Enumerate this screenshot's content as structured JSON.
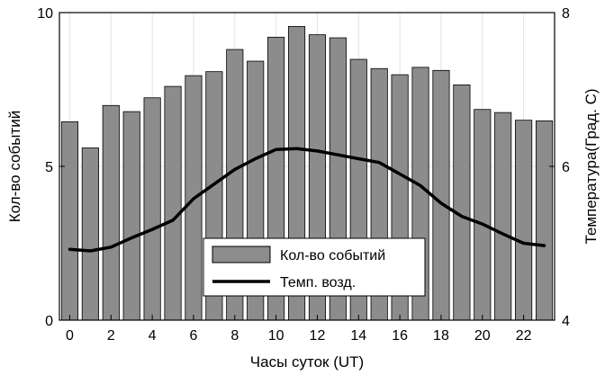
{
  "chart_data": {
    "type": "bar",
    "x": [
      0,
      1,
      2,
      3,
      4,
      5,
      6,
      7,
      8,
      9,
      10,
      11,
      12,
      13,
      14,
      15,
      16,
      17,
      18,
      19,
      20,
      21,
      22,
      23
    ],
    "series": [
      {
        "name": "Кол-во событий",
        "type": "bar",
        "axis": "left",
        "color": "#8c8c8c",
        "values": [
          6.45,
          5.6,
          6.98,
          6.78,
          7.23,
          7.6,
          7.95,
          8.08,
          8.8,
          8.42,
          9.2,
          9.55,
          9.28,
          9.18,
          8.48,
          8.18,
          7.98,
          8.22,
          8.12,
          7.65,
          6.85,
          6.75,
          6.5,
          6.48
        ]
      },
      {
        "name": "Темп. возд.",
        "type": "line",
        "axis": "right",
        "color": "#000000",
        "values": [
          4.92,
          4.9,
          4.95,
          5.07,
          5.18,
          5.3,
          5.58,
          5.77,
          5.96,
          6.1,
          6.22,
          6.23,
          6.2,
          6.15,
          6.1,
          6.05,
          5.9,
          5.75,
          5.52,
          5.35,
          5.25,
          5.12,
          5.0,
          4.97
        ]
      }
    ],
    "xlabel": "Часы суток (UT)",
    "ylabel": "Кол-во событий",
    "y2label": "Температура(Град. C)",
    "xlim": [
      -0.5,
      23.5
    ],
    "ylim": [
      0,
      10
    ],
    "y2lim": [
      4,
      8
    ],
    "xticks": [
      "0",
      "2",
      "4",
      "6",
      "8",
      "10",
      "12",
      "14",
      "16",
      "18",
      "20",
      "22"
    ],
    "xtick_values": [
      0,
      2,
      4,
      6,
      8,
      10,
      12,
      14,
      16,
      18,
      20,
      22
    ],
    "yticks": [
      "0",
      "5",
      "10"
    ],
    "ytick_values": [
      0,
      5,
      10
    ],
    "y2ticks": [
      "4",
      "6",
      "8"
    ],
    "y2tick_values": [
      4,
      6,
      8
    ],
    "grid": true,
    "legend": "bottom-center"
  }
}
